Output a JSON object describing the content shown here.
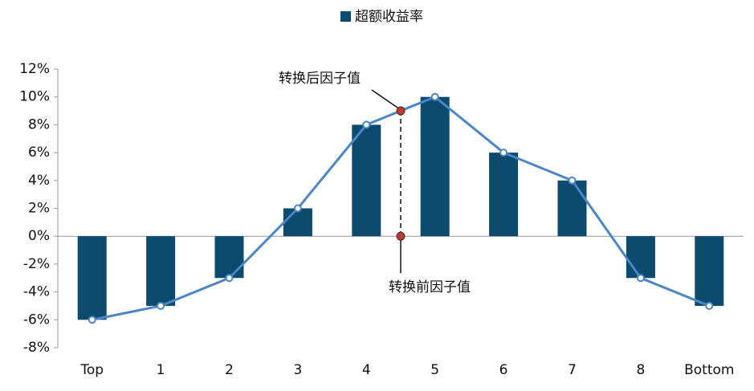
{
  "chart_data": {
    "type": "bar",
    "categories": [
      "Top",
      "1",
      "2",
      "3",
      "4",
      "5",
      "6",
      "7",
      "8",
      "Bottom"
    ],
    "series": [
      {
        "name": "超额收益率",
        "color": "#0c4a6e",
        "values": [
          -6,
          -5,
          -3,
          2,
          8,
          10,
          6,
          4,
          -3,
          -5
        ]
      }
    ],
    "line": {
      "color": "#4a86c8",
      "values": [
        -6,
        -5,
        -3,
        2,
        8,
        10,
        6,
        4,
        -3,
        -5
      ]
    },
    "annotations": [
      {
        "text": "转换后因子值",
        "value": 9,
        "color": "#c0392b"
      },
      {
        "text": "转换前因子值",
        "value": 0,
        "color": "#c0392b"
      }
    ],
    "ylim": [
      -8,
      12
    ],
    "yticks": [
      {
        "value": -8,
        "label": "-8%"
      },
      {
        "value": -6,
        "label": "-6%"
      },
      {
        "value": -4,
        "label": "-4%"
      },
      {
        "value": -2,
        "label": "-2%"
      },
      {
        "value": 0,
        "label": "0%"
      },
      {
        "value": 2,
        "label": "2%"
      },
      {
        "value": 4,
        "label": "4%"
      },
      {
        "value": 6,
        "label": "6%"
      },
      {
        "value": 8,
        "label": "8%"
      },
      {
        "value": 10,
        "label": "10%"
      },
      {
        "value": 12,
        "label": "12%"
      }
    ],
    "legend": "top"
  }
}
